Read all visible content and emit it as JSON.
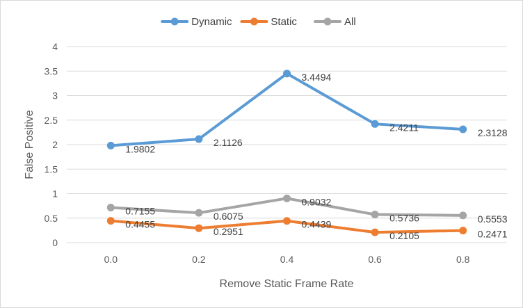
{
  "chart_data": {
    "type": "line",
    "title": "",
    "xlabel": "Remove Static Frame Rate",
    "ylabel": "False Positive",
    "categories": [
      "0.0",
      "0.2",
      "0.4",
      "0.6",
      "0.8"
    ],
    "ylim": [
      0,
      4
    ],
    "yticks": [
      "0",
      "0.5",
      "1",
      "1.5",
      "2",
      "2.5",
      "3",
      "3.5",
      "4"
    ],
    "grid": true,
    "legend_position": "top",
    "series": [
      {
        "name": "Dynamic",
        "color": "#5b9bd5",
        "values": [
          1.9802,
          2.1126,
          3.4494,
          2.4211,
          2.3128
        ],
        "labels": [
          "1.9802",
          "2.1126",
          "3.4494",
          "2.4211",
          "2.3128"
        ]
      },
      {
        "name": "Static",
        "color": "#ed7d31",
        "values": [
          0.4455,
          0.2951,
          0.4439,
          0.2105,
          0.2471
        ],
        "labels": [
          "0.4455",
          "0.2951",
          "0.4439",
          "0.2105",
          "0.2471"
        ]
      },
      {
        "name": "All",
        "color": "#a5a5a5",
        "values": [
          0.7155,
          0.6075,
          0.9032,
          0.5736,
          0.5553
        ],
        "labels": [
          "0.7155",
          "0.6075",
          "0.9032",
          "0.5736",
          "0.5553"
        ]
      }
    ]
  }
}
